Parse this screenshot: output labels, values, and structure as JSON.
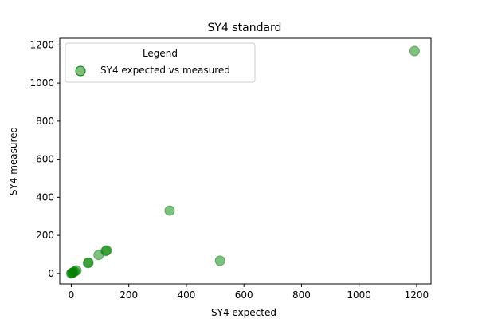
{
  "chart_data": {
    "type": "scatter",
    "title": "SY4 standard",
    "xlabel": "SY4 expected",
    "ylabel": "SY4 measured",
    "xlim": [
      -40,
      1250
    ],
    "ylim": [
      -55,
      1235
    ],
    "xticks": [
      0,
      200,
      400,
      600,
      800,
      1000,
      1200
    ],
    "yticks": [
      0,
      200,
      400,
      600,
      800,
      1000,
      1200
    ],
    "grid": false,
    "legend": {
      "title": "Legend",
      "position": "top-left",
      "entries": [
        "SY4 expected vs measured"
      ]
    },
    "series": [
      {
        "name": "SY4 expected vs measured",
        "color": "#008000",
        "points": [
          {
            "x": 0,
            "y": 0
          },
          {
            "x": 2,
            "y": 2
          },
          {
            "x": 5,
            "y": 4
          },
          {
            "x": 8,
            "y": 7
          },
          {
            "x": 12,
            "y": 10
          },
          {
            "x": 18,
            "y": 16
          },
          {
            "x": 58,
            "y": 55
          },
          {
            "x": 60,
            "y": 57
          },
          {
            "x": 95,
            "y": 97
          },
          {
            "x": 120,
            "y": 118
          },
          {
            "x": 123,
            "y": 121
          },
          {
            "x": 342,
            "y": 330
          },
          {
            "x": 517,
            "y": 67
          },
          {
            "x": 1193,
            "y": 1168
          }
        ]
      }
    ]
  }
}
